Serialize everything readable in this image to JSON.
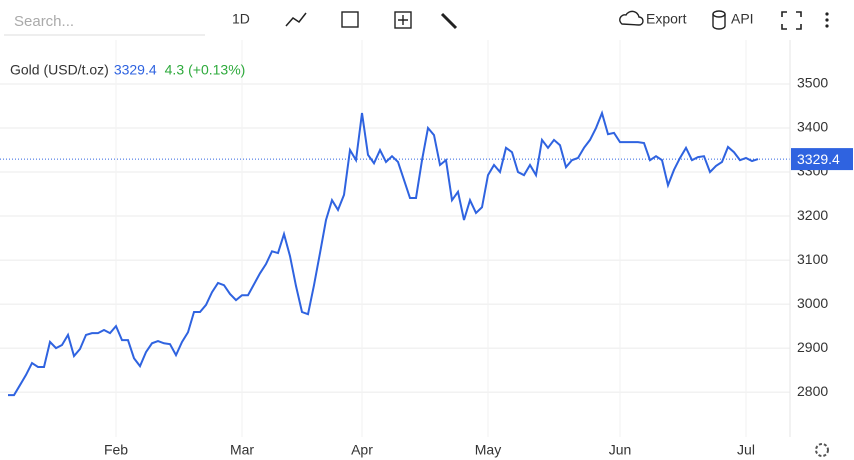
{
  "toolbar": {
    "search_placeholder": "Search...",
    "interval": "1D",
    "export": "Export",
    "api": "API"
  },
  "chart_data": {
    "type": "line",
    "legend_name": "Gold (USD/t.oz)",
    "change": 4.3,
    "change_percent": "(+0.13%)",
    "categories": [
      null,
      null,
      null,
      null,
      null,
      null,
      null,
      null,
      null,
      null,
      null,
      null,
      null,
      null,
      null,
      null,
      null,
      null,
      "Feb",
      null,
      null,
      null,
      null,
      null,
      null,
      null,
      null,
      null,
      null,
      null,
      null,
      null,
      null,
      null,
      null,
      null,
      null,
      null,
      null,
      "Mar",
      null,
      null,
      null,
      null,
      null,
      null,
      null,
      null,
      null,
      null,
      null,
      null,
      null,
      null,
      null,
      null,
      null,
      null,
      null,
      "Apr",
      null,
      null,
      null,
      null,
      null,
      null,
      null,
      null,
      null,
      null,
      null,
      null,
      null,
      null,
      null,
      null,
      null,
      null,
      null,
      null,
      "May",
      null,
      null,
      null,
      null,
      null,
      null,
      null,
      null,
      null,
      null,
      null,
      null,
      null,
      null,
      null,
      null,
      null,
      null,
      null,
      null,
      null,
      "Jun",
      null,
      null,
      null,
      null,
      null,
      null,
      null,
      null,
      null,
      null,
      null,
      null,
      null,
      null,
      null,
      null,
      null,
      null,
      null,
      null,
      "Jul",
      null,
      null
    ],
    "series": [
      {
        "name": "Gold (USD/t.oz)",
        "color": "#2f63e0",
        "values": [
          2793,
          2793,
          2816,
          2839,
          2866,
          2857,
          2857,
          2914,
          2900,
          2907,
          2930,
          2882,
          2898,
          2930,
          2934,
          2934,
          2941,
          2934,
          2950,
          2918,
          2918,
          2877,
          2859,
          2891,
          2911,
          2916,
          2911,
          2909,
          2884,
          2914,
          2936,
          2982,
          2982,
          2998,
          3027,
          3048,
          3043,
          3023,
          3009,
          3020,
          3020,
          3045,
          3070,
          3091,
          3120,
          3116,
          3159,
          3109,
          3041,
          2982,
          2977,
          3043,
          3116,
          3191,
          3236,
          3214,
          3248,
          3350,
          3327,
          3434,
          3339,
          3320,
          3350,
          3323,
          3336,
          3323,
          3282,
          3241,
          3241,
          3327,
          3400,
          3384,
          3316,
          3327,
          3236,
          3255,
          3191,
          3236,
          3207,
          3220,
          3293,
          3316,
          3300,
          3355,
          3345,
          3300,
          3293,
          3316,
          3293,
          3373,
          3355,
          3373,
          3361,
          3311,
          3327,
          3332,
          3355,
          3373,
          3400,
          3434,
          3386,
          3389,
          3368,
          3368,
          3368,
          3368,
          3366,
          3327,
          3336,
          3327,
          3270,
          3305,
          3332,
          3355,
          3327,
          3334,
          3336,
          3300,
          3314,
          3323,
          3357,
          3345,
          3327,
          3332,
          3325,
          3329.4
        ]
      }
    ],
    "ylim": [
      2698,
      3600
    ],
    "yticks": [
      2800,
      2900,
      3000,
      3100,
      3200,
      3300,
      3400,
      3500
    ],
    "grid": true,
    "change_color": "#2eaa3c"
  }
}
